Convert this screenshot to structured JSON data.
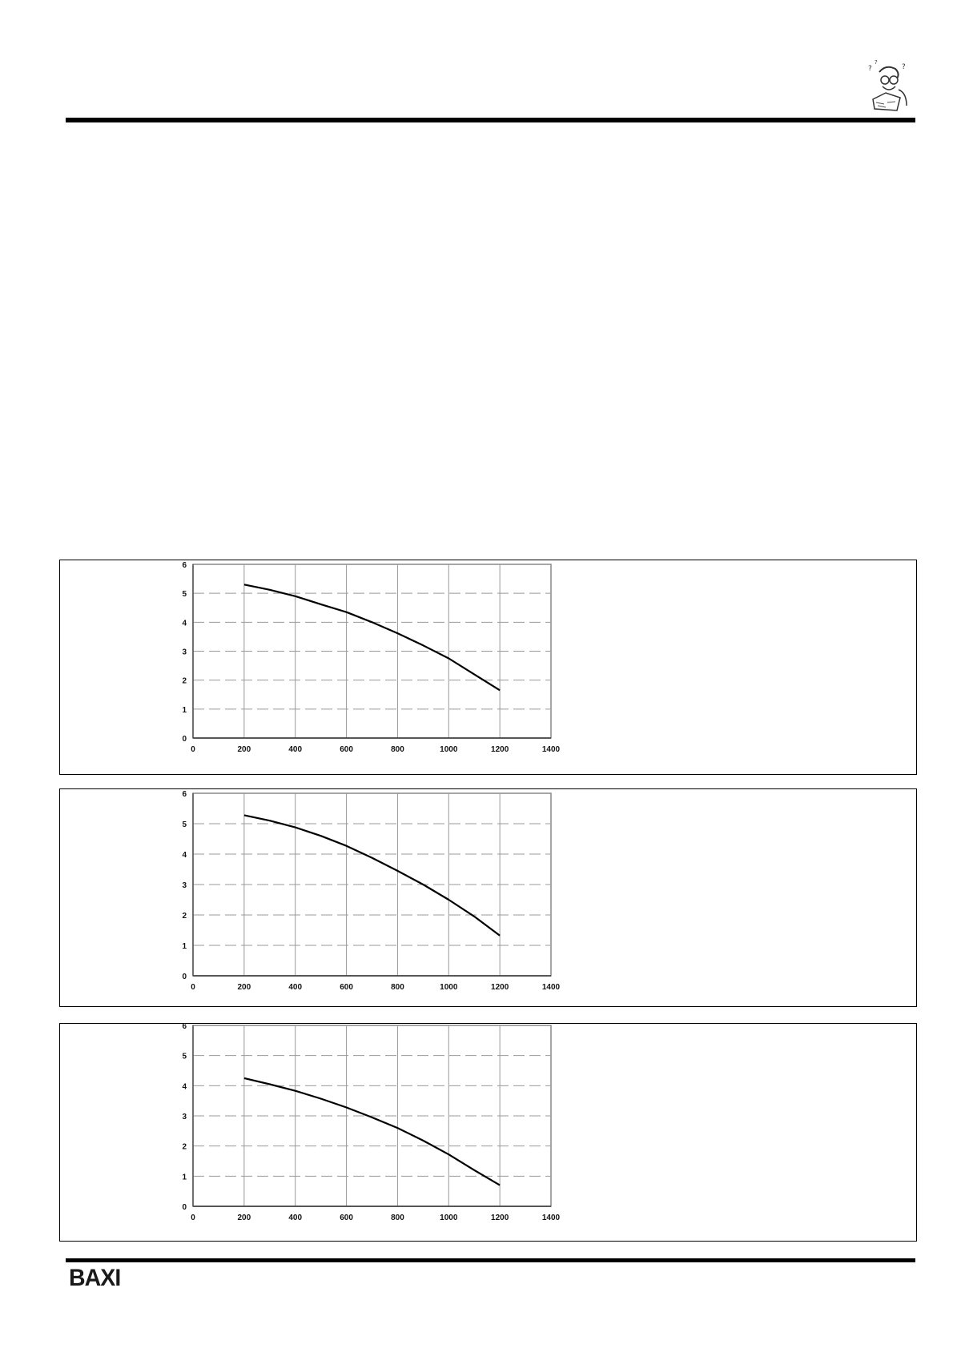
{
  "header": {
    "icon": "confused-reader-mascot-icon"
  },
  "footer": {
    "logo": "BAXI"
  },
  "chart_data": [
    {
      "type": "line",
      "x": [
        200,
        300,
        400,
        500,
        600,
        700,
        800,
        900,
        1000,
        1100,
        1200
      ],
      "series": [
        {
          "values": [
            5.3,
            5.12,
            4.9,
            4.62,
            4.35,
            4.0,
            3.62,
            3.2,
            2.75,
            2.2,
            1.65
          ]
        }
      ],
      "xlim": [
        0,
        1400
      ],
      "ylim": [
        0,
        6
      ],
      "xticks": [
        "0",
        "200",
        "400",
        "600",
        "800",
        "1000",
        "1200",
        "1400"
      ],
      "yticks": [
        "0",
        "1",
        "2",
        "3",
        "4",
        "5",
        "6"
      ],
      "grid": true,
      "xlabel": "",
      "ylabel": "",
      "title": ""
    },
    {
      "type": "line",
      "x": [
        200,
        300,
        400,
        500,
        600,
        700,
        800,
        900,
        1000,
        1100,
        1200
      ],
      "series": [
        {
          "values": [
            5.28,
            5.1,
            4.88,
            4.6,
            4.27,
            3.88,
            3.45,
            3.0,
            2.5,
            1.95,
            1.32
          ]
        }
      ],
      "xlim": [
        0,
        1400
      ],
      "ylim": [
        0,
        6
      ],
      "xticks": [
        "0",
        "200",
        "400",
        "600",
        "800",
        "1000",
        "1200",
        "1400"
      ],
      "yticks": [
        "0",
        "1",
        "2",
        "3",
        "4",
        "5",
        "6"
      ],
      "grid": true,
      "xlabel": "",
      "ylabel": "",
      "title": ""
    },
    {
      "type": "line",
      "x": [
        200,
        300,
        400,
        500,
        600,
        700,
        800,
        900,
        1000,
        1100,
        1200
      ],
      "series": [
        {
          "values": [
            4.25,
            4.05,
            3.83,
            3.57,
            3.28,
            2.95,
            2.6,
            2.18,
            1.72,
            1.2,
            0.7
          ]
        }
      ],
      "xlim": [
        0,
        1400
      ],
      "ylim": [
        0,
        6
      ],
      "xticks": [
        "0",
        "200",
        "400",
        "600",
        "800",
        "1000",
        "1200",
        "1400"
      ],
      "yticks": [
        "0",
        "1",
        "2",
        "3",
        "4",
        "5",
        "6"
      ],
      "grid": true,
      "xlabel": "",
      "ylabel": "",
      "title": ""
    }
  ]
}
